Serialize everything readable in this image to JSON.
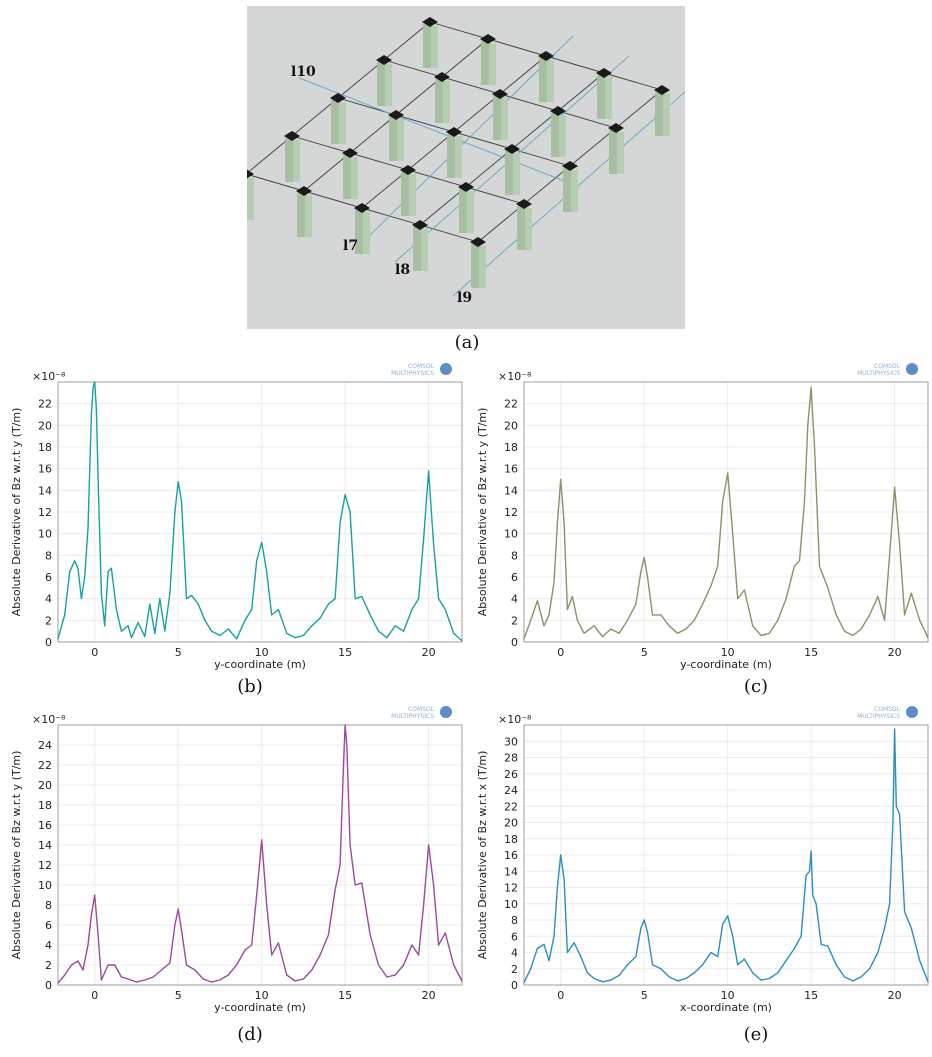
{
  "captions": {
    "a": "(a)",
    "b": "(b)",
    "c": "(c)",
    "d": "(d)",
    "e": "(e)"
  },
  "diagram": {
    "line_labels": [
      "l10",
      "l7",
      "l8",
      "l9"
    ],
    "background": "#d4d7d6",
    "column_color": "#b7cdb3",
    "cap_color": "#1a1a1a",
    "beam_color": "#3a3a3a",
    "line_color": "#6fa9c8"
  },
  "logo": {
    "line1": "COMSOL",
    "line2": "MULTIPHYSICS"
  },
  "chart_data": [
    {
      "id": "b",
      "type": "line",
      "color": "#1aa0a0",
      "exponent": "×10⁻⁸",
      "xlabel": "y-coordinate (m)",
      "ylabel": "Absolute Derivative of Bz w.r.t y (T/m)",
      "xlim": [
        -2.2,
        22
      ],
      "ylim": [
        0,
        24
      ],
      "xticks": [
        0,
        5,
        10,
        15,
        20
      ],
      "yticks": [
        0,
        2,
        4,
        6,
        8,
        10,
        12,
        14,
        16,
        18,
        20,
        22
      ],
      "x": [
        -2.2,
        -1.8,
        -1.5,
        -1.2,
        -1.0,
        -0.8,
        -0.6,
        -0.4,
        -0.2,
        -0.1,
        0.0,
        0.1,
        0.2,
        0.4,
        0.6,
        0.8,
        1.0,
        1.3,
        1.6,
        2.0,
        2.2,
        2.6,
        3.0,
        3.3,
        3.6,
        3.9,
        4.2,
        4.5,
        4.8,
        5.0,
        5.2,
        5.5,
        5.8,
        6.2,
        6.6,
        7.0,
        7.5,
        8.0,
        8.5,
        9.0,
        9.4,
        9.7,
        10.0,
        10.3,
        10.6,
        11.0,
        11.5,
        12.0,
        12.5,
        13.0,
        13.5,
        14.0,
        14.4,
        14.7,
        15.0,
        15.3,
        15.6,
        16.0,
        16.5,
        17.0,
        17.5,
        18.0,
        18.5,
        19.0,
        19.4,
        19.7,
        20.0,
        20.3,
        20.6,
        21.0,
        21.5,
        22.0
      ],
      "y": [
        0.3,
        2.5,
        6.5,
        7.5,
        6.8,
        4.0,
        6.0,
        10.5,
        21.0,
        23.5,
        24.0,
        21.5,
        15.0,
        4.5,
        1.5,
        6.5,
        6.8,
        3.0,
        1.0,
        1.5,
        0.4,
        1.8,
        0.5,
        3.5,
        0.8,
        4.0,
        1.0,
        4.5,
        12.0,
        14.8,
        13.0,
        4.0,
        4.3,
        3.5,
        2.0,
        1.0,
        0.6,
        1.2,
        0.3,
        2.0,
        3.0,
        7.5,
        9.2,
        6.5,
        2.5,
        3.0,
        0.8,
        0.4,
        0.6,
        1.5,
        2.2,
        3.5,
        4.0,
        11.0,
        13.6,
        12.0,
        4.0,
        4.2,
        2.5,
        1.0,
        0.4,
        1.5,
        1.0,
        3.0,
        4.0,
        9.5,
        15.8,
        9.0,
        4.0,
        3.0,
        0.8,
        0.1
      ]
    },
    {
      "id": "c",
      "type": "line",
      "color": "#8b9268",
      "exponent": "×10⁻⁸",
      "xlabel": "y-coordinate (m)",
      "ylabel": "Absolute Derivative of Bz w.r.t y (T/m)",
      "xlim": [
        -2.2,
        22
      ],
      "ylim": [
        0,
        24
      ],
      "xticks": [
        0,
        5,
        10,
        15,
        20
      ],
      "yticks": [
        0,
        2,
        4,
        6,
        8,
        10,
        12,
        14,
        16,
        18,
        20,
        22
      ],
      "x": [
        -2.2,
        -1.8,
        -1.4,
        -1.0,
        -0.7,
        -0.4,
        -0.2,
        0.0,
        0.2,
        0.4,
        0.7,
        1.0,
        1.4,
        2.0,
        2.5,
        3.0,
        3.5,
        4.0,
        4.5,
        4.8,
        5.0,
        5.2,
        5.5,
        6.0,
        6.5,
        7.0,
        7.5,
        8.0,
        8.5,
        9.0,
        9.4,
        9.7,
        10.0,
        10.3,
        10.6,
        11.0,
        11.5,
        12.0,
        12.5,
        13.0,
        13.5,
        14.0,
        14.3,
        14.6,
        14.8,
        15.0,
        15.2,
        15.5,
        16.0,
        16.5,
        17.0,
        17.5,
        18.0,
        18.5,
        19.0,
        19.4,
        19.7,
        20.0,
        20.3,
        20.6,
        21.0,
        21.5,
        22.0
      ],
      "y": [
        0.3,
        2.0,
        3.8,
        1.5,
        2.5,
        5.5,
        11.0,
        15.0,
        11.0,
        3.0,
        4.2,
        2.0,
        0.8,
        1.5,
        0.5,
        1.2,
        0.8,
        2.0,
        3.5,
        6.5,
        7.8,
        6.0,
        2.5,
        2.5,
        1.5,
        0.8,
        1.2,
        2.0,
        3.5,
        5.2,
        7.0,
        13.0,
        15.6,
        10.0,
        4.0,
        4.8,
        1.5,
        0.6,
        0.8,
        2.0,
        4.0,
        7.0,
        7.5,
        13.0,
        20.0,
        23.5,
        18.0,
        7.0,
        5.0,
        2.5,
        1.0,
        0.6,
        1.2,
        2.5,
        4.2,
        2.0,
        8.0,
        14.3,
        9.0,
        2.5,
        4.5,
        2.0,
        0.4
      ]
    },
    {
      "id": "d",
      "type": "line",
      "color": "#9c4a9c",
      "exponent": "×10⁻⁸",
      "xlabel": "y-coordinate (m)",
      "ylabel": "Absolute Derivative of Bz w.r.t y (T/m)",
      "xlim": [
        -2.2,
        22
      ],
      "ylim": [
        0,
        26
      ],
      "xticks": [
        0,
        5,
        10,
        15,
        20
      ],
      "yticks": [
        0,
        2,
        4,
        6,
        8,
        10,
        12,
        14,
        16,
        18,
        20,
        22,
        24
      ],
      "x": [
        -2.2,
        -1.8,
        -1.4,
        -1.0,
        -0.7,
        -0.4,
        -0.2,
        0.0,
        0.2,
        0.4,
        0.8,
        1.2,
        1.6,
        2.0,
        2.5,
        3.0,
        3.5,
        4.0,
        4.5,
        4.8,
        5.0,
        5.2,
        5.5,
        6.0,
        6.5,
        7.0,
        7.5,
        8.0,
        8.5,
        9.0,
        9.4,
        9.7,
        10.0,
        10.3,
        10.6,
        11.0,
        11.5,
        12.0,
        12.5,
        13.0,
        13.5,
        14.0,
        14.4,
        14.7,
        14.9,
        15.0,
        15.1,
        15.3,
        15.6,
        16.0,
        16.5,
        17.0,
        17.5,
        18.0,
        18.5,
        19.0,
        19.4,
        19.7,
        20.0,
        20.3,
        20.6,
        21.0,
        21.5,
        22.0
      ],
      "y": [
        0.2,
        1.0,
        2.0,
        2.4,
        1.5,
        4.0,
        7.0,
        9.0,
        5.0,
        0.5,
        2.0,
        2.0,
        0.8,
        0.6,
        0.3,
        0.5,
        0.8,
        1.5,
        2.2,
        6.0,
        7.6,
        5.5,
        2.0,
        1.5,
        0.6,
        0.3,
        0.5,
        1.0,
        2.0,
        3.5,
        4.0,
        9.0,
        14.5,
        8.0,
        3.0,
        4.2,
        1.0,
        0.4,
        0.6,
        1.5,
        3.0,
        5.0,
        9.5,
        12.0,
        22.0,
        26.0,
        24.0,
        14.0,
        10.0,
        10.2,
        5.0,
        2.0,
        0.8,
        1.0,
        2.0,
        4.0,
        3.0,
        8.0,
        14.0,
        10.0,
        4.0,
        5.2,
        2.0,
        0.4
      ]
    },
    {
      "id": "e",
      "type": "line",
      "color": "#2a8fbf",
      "exponent": "×10⁻⁸",
      "xlabel": "x-coordinate (m)",
      "ylabel": "Absolute Derivative of Bz w.r.t x (T/m)",
      "xlim": [
        -2.2,
        22
      ],
      "ylim": [
        0,
        32
      ],
      "xticks": [
        0,
        5,
        10,
        15,
        20
      ],
      "yticks": [
        0,
        2,
        4,
        6,
        8,
        10,
        12,
        14,
        16,
        18,
        20,
        22,
        24,
        26,
        28,
        30
      ],
      "x": [
        -2.2,
        -1.8,
        -1.4,
        -1.0,
        -0.7,
        -0.4,
        -0.2,
        0.0,
        0.2,
        0.4,
        0.8,
        1.2,
        1.6,
        2.0,
        2.5,
        3.0,
        3.5,
        4.0,
        4.5,
        4.8,
        5.0,
        5.2,
        5.5,
        6.0,
        6.5,
        7.0,
        7.5,
        8.0,
        8.5,
        9.0,
        9.4,
        9.7,
        10.0,
        10.3,
        10.6,
        11.0,
        11.5,
        12.0,
        12.5,
        13.0,
        13.5,
        14.0,
        14.4,
        14.7,
        14.9,
        15.0,
        15.1,
        15.3,
        15.6,
        16.0,
        16.5,
        17.0,
        17.5,
        18.0,
        18.5,
        19.0,
        19.4,
        19.7,
        19.9,
        20.0,
        20.1,
        20.3,
        20.6,
        21.0,
        21.5,
        22.0
      ],
      "y": [
        0.3,
        2.0,
        4.5,
        5.0,
        3.0,
        6.0,
        12.0,
        16.0,
        13.0,
        4.0,
        5.2,
        3.5,
        1.5,
        0.8,
        0.4,
        0.6,
        1.2,
        2.5,
        3.5,
        7.0,
        8.0,
        6.5,
        2.5,
        2.0,
        1.0,
        0.5,
        0.8,
        1.5,
        2.5,
        4.0,
        3.5,
        7.5,
        8.5,
        6.0,
        2.5,
        3.2,
        1.5,
        0.6,
        0.8,
        1.5,
        3.0,
        4.5,
        6.0,
        13.5,
        14.0,
        16.5,
        11.0,
        10.0,
        5.0,
        4.8,
        2.5,
        1.0,
        0.5,
        1.0,
        2.0,
        4.0,
        7.0,
        10.0,
        20.0,
        31.5,
        22.0,
        21.0,
        9.0,
        7.0,
        3.0,
        0.4
      ]
    }
  ]
}
